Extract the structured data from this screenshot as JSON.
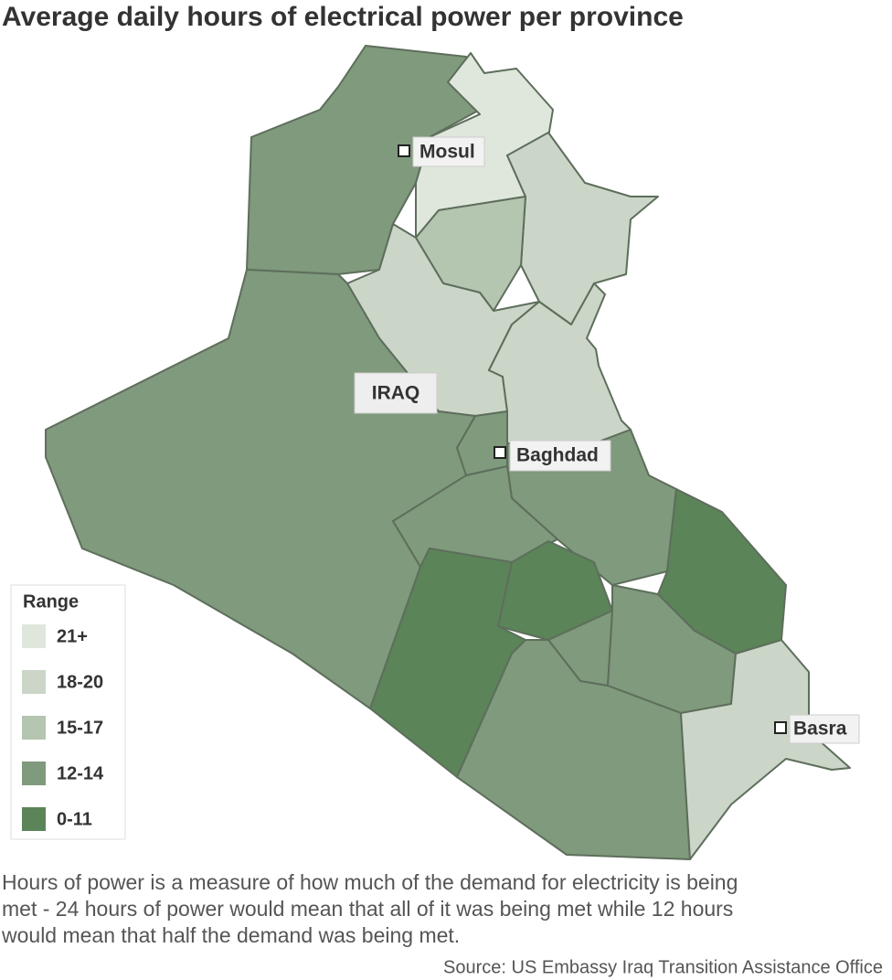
{
  "title": "Average daily hours of electrical power per province",
  "map": {
    "country_label": "IRAQ",
    "cities": [
      "Mosul",
      "Baghdad",
      "Basra"
    ],
    "legend": {
      "title": "Range",
      "items": [
        {
          "label": "21+",
          "color": "#dfe7dd"
        },
        {
          "label": "18-20",
          "color": "#cbd6c8"
        },
        {
          "label": "15-17",
          "color": "#b4c5b0"
        },
        {
          "label": "12-14",
          "color": "#7f9a7c"
        },
        {
          "label": "0-11",
          "color": "#5b8459"
        }
      ]
    }
  },
  "note_lines": [
    "Hours of power is a measure of how much of the demand for electricity is being",
    "met - 24 hours of power would mean that all of it was being met while 12 hours",
    "would mean that half the demand was being met."
  ],
  "source": "Source: US Embassy Iraq Transition Assistance Office"
}
